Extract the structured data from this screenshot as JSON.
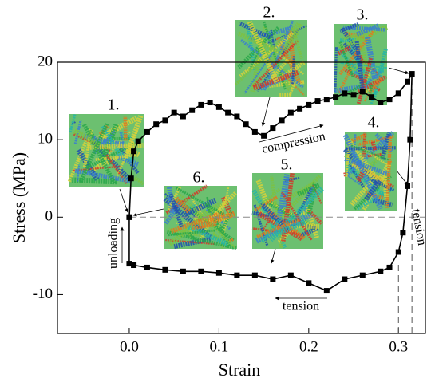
{
  "chart_data": {
    "type": "line",
    "x_label": "Strain",
    "y_label": "Stress  (MPa)",
    "xlim": [
      -0.08,
      0.33
    ],
    "ylim": [
      -15,
      20
    ],
    "xticks": [
      {
        "value": 0,
        "label": "0.0"
      },
      0.1,
      0.2,
      0.3
    ],
    "yticks": [
      -10,
      0,
      10,
      20
    ],
    "hline": 0,
    "vlines": [
      0.3,
      0.315
    ],
    "series": [
      {
        "color": "#000000",
        "x": [
          0,
          0.002,
          0.005,
          0.01,
          0.02,
          0.03,
          0.04,
          0.05,
          0.06,
          0.07,
          0.08,
          0.09,
          0.1,
          0.11,
          0.12,
          0.13,
          0.14,
          0.15,
          0.16,
          0.17,
          0.18,
          0.19,
          0.2,
          0.21,
          0.22,
          0.23,
          0.24,
          0.25,
          0.26,
          0.27,
          0.28,
          0.29,
          0.3,
          0.31,
          0.315,
          0.313,
          0.31,
          0.305,
          0.3,
          0.29,
          0.28,
          0.26,
          0.24,
          0.22,
          0.2,
          0.18,
          0.16,
          0.14,
          0.12,
          0.1,
          0.08,
          0.06,
          0.04,
          0.02,
          0.005,
          0,
          0
        ],
        "values": [
          0,
          5,
          8.5,
          9.8,
          11,
          12,
          12.5,
          13.5,
          13,
          13.8,
          14.5,
          14.8,
          14.2,
          13.5,
          13,
          12,
          11,
          10.5,
          11.5,
          12.5,
          13.5,
          14,
          14.5,
          15,
          15.2,
          15.5,
          16,
          15.8,
          16.2,
          15.5,
          14.8,
          15.2,
          16,
          17.5,
          18.5,
          10,
          4,
          -2,
          -4.5,
          -6.5,
          -7,
          -7.5,
          -8,
          -9.5,
          -8.5,
          -7.5,
          -8,
          -7.5,
          -7.5,
          -7.2,
          -7,
          -7,
          -6.8,
          -6.5,
          -6.2,
          -6,
          0
        ]
      }
    ],
    "annotations": [
      "1.",
      "2.",
      "3.",
      "4.",
      "5.",
      "6.",
      "compression",
      "tension",
      "tension",
      "unloading"
    ]
  }
}
